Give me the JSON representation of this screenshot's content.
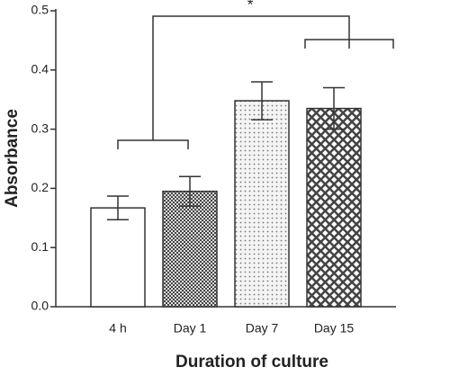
{
  "chart_data": {
    "type": "bar",
    "categories": [
      "4 h",
      "Day 1",
      "Day 7",
      "Day 15"
    ],
    "values": [
      0.167,
      0.195,
      0.348,
      0.335
    ],
    "errors": [
      0.02,
      0.025,
      0.032,
      0.035
    ],
    "color": "#333333",
    "xlabel": "Duration of culture",
    "ylabel": "Absorbance",
    "annotation": "*",
    "ylim": [
      0,
      0.5
    ],
    "yticks": [
      {
        "value": 0,
        "label": "0.0"
      },
      0.1,
      0.2,
      0.3,
      0.4,
      0.5
    ],
    "grid": false
  }
}
